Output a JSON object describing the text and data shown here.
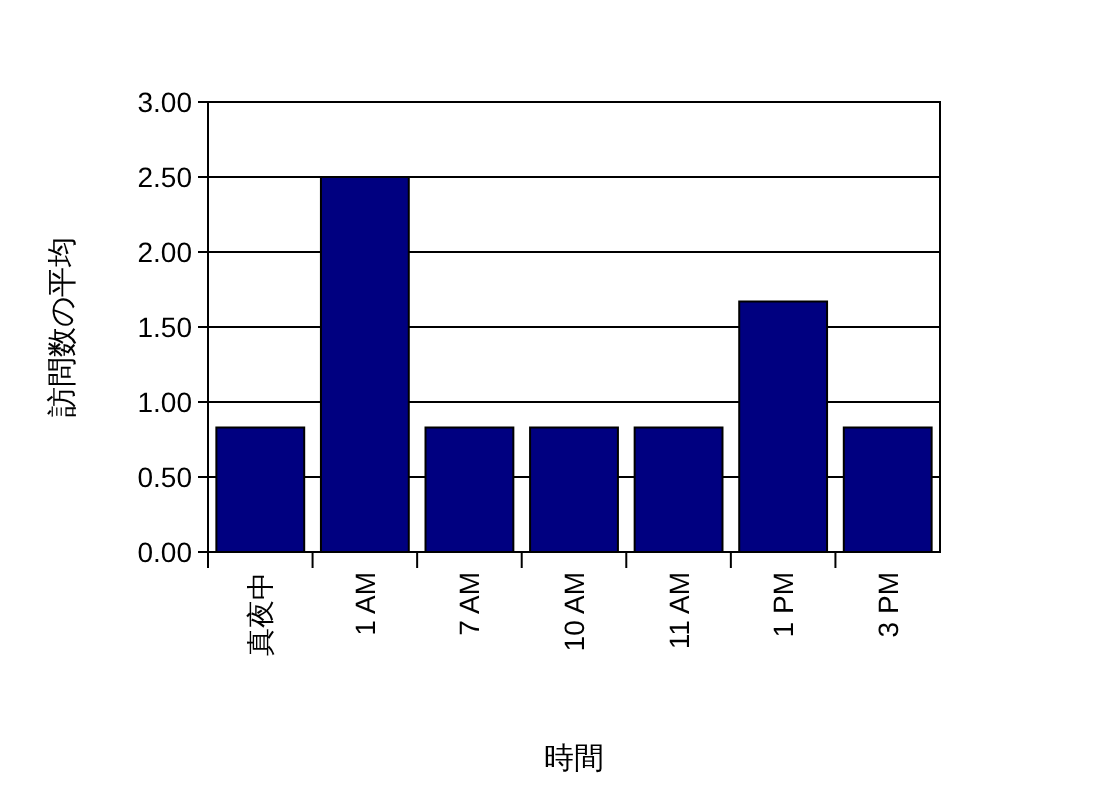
{
  "chart_data": {
    "type": "bar",
    "xlabel": "時間",
    "ylabel": "訪問数の平均",
    "categories": [
      "真夜中",
      "1 AM",
      "7 AM",
      "10 AM",
      "11 AM",
      "1 PM",
      "3 PM"
    ],
    "values": [
      0.83,
      2.5,
      0.83,
      0.83,
      0.83,
      1.67,
      0.83
    ],
    "color": "#000080",
    "ylim": [
      0,
      3
    ],
    "yticks": [
      {
        "value": 0,
        "label": "0.00"
      },
      {
        "value": 0.5,
        "label": "0.50"
      },
      {
        "value": 1,
        "label": "1.00"
      },
      {
        "value": 1.5,
        "label": "1.50"
      },
      {
        "value": 2,
        "label": "2.00"
      },
      {
        "value": 2.5,
        "label": "2.50"
      },
      {
        "value": 3,
        "label": "3.00"
      }
    ],
    "grid": "y"
  }
}
